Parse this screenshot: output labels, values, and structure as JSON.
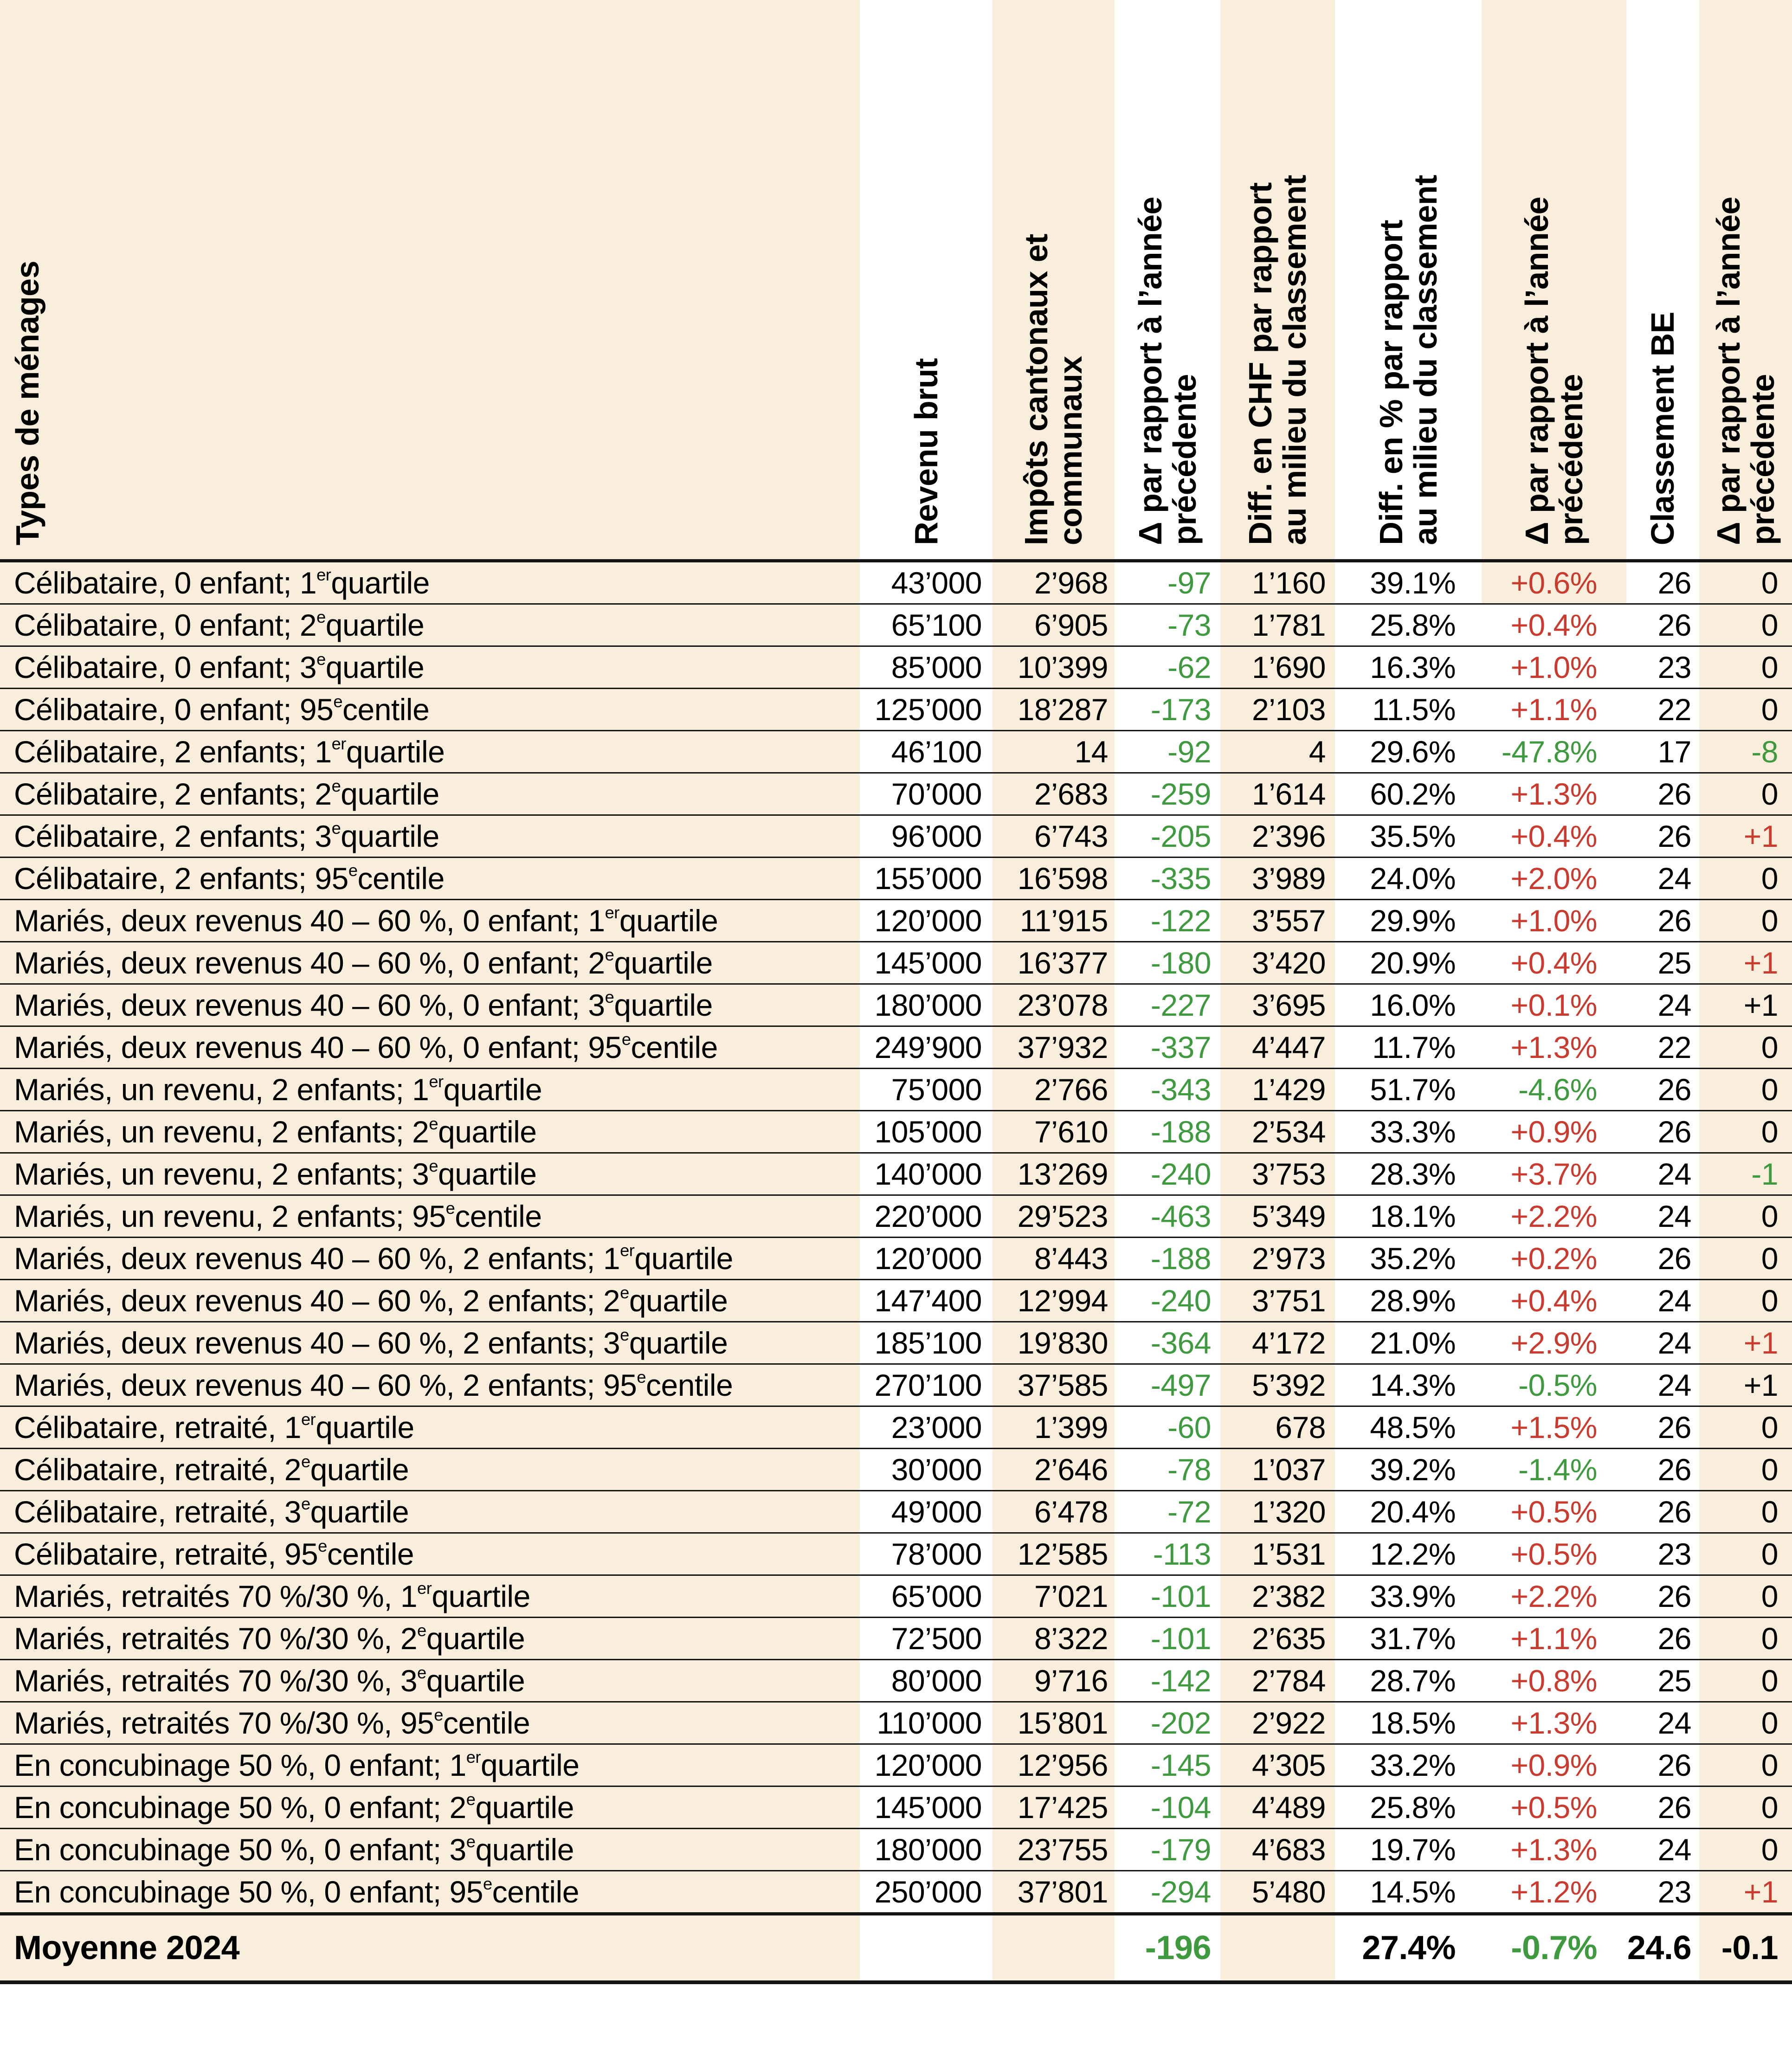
{
  "colors": {
    "background": "#ffffff",
    "beige": "#f8eedb",
    "green": "#3f9a3f",
    "red": "#c93a2f",
    "line": "#141414",
    "text": "#000000"
  },
  "chart_data": {
    "type": "table",
    "layout": {
      "striped_columns": [
        "impots",
        "diff_chf",
        "d_rang"
      ],
      "header_rotated": true,
      "grid": "horizontal-rules-only"
    },
    "columns": [
      {
        "id": "menage",
        "label": "Types de ménages"
      },
      {
        "id": "revenu",
        "label": "Revenu brut"
      },
      {
        "id": "impots",
        "label": "Impôts cantonaux et\ncommunaux"
      },
      {
        "id": "d_impots",
        "label": "Δ par rapport à l’année\nprécédente"
      },
      {
        "id": "diff_chf",
        "label": "Diff. en CHF par rapport\nau milieu du classement"
      },
      {
        "id": "diff_pct",
        "label": "Diff. en % par rapport\nau milieu du classement"
      },
      {
        "id": "d_pct",
        "label": "Δ par rapport à l’année\nprécédente"
      },
      {
        "id": "rang",
        "label": "Classement BE"
      },
      {
        "id": "d_rang",
        "label": "Δ par rapport à l’année\nprécédente"
      }
    ],
    "rows": [
      {
        "menage": "Célibataire, 0 enfant; 1^{er} quartile",
        "revenu": "43’000",
        "impots": "2’968",
        "d_impots": "-97",
        "diff_chf": "1’160",
        "diff_pct": "39.1%",
        "d_pct": "+0.6%",
        "d_pct_color": "red",
        "rang": "26",
        "d_rang": "0",
        "d_rang_color": "black"
      },
      {
        "menage": "Célibataire, 0 enfant; 2^{e} quartile",
        "revenu": "65’100",
        "impots": "6’905",
        "d_impots": "-73",
        "diff_chf": "1’781",
        "diff_pct": "25.8%",
        "d_pct": "+0.4%",
        "d_pct_color": "red",
        "rang": "26",
        "d_rang": "0",
        "d_rang_color": "black"
      },
      {
        "menage": "Célibataire, 0 enfant; 3^{e} quartile",
        "revenu": "85’000",
        "impots": "10’399",
        "d_impots": "-62",
        "diff_chf": "1’690",
        "diff_pct": "16.3%",
        "d_pct": "+1.0%",
        "d_pct_color": "red",
        "rang": "23",
        "d_rang": "0",
        "d_rang_color": "black"
      },
      {
        "menage": "Célibataire, 0 enfant; 95^{e} centile",
        "revenu": "125’000",
        "impots": "18’287",
        "d_impots": "-173",
        "diff_chf": "2’103",
        "diff_pct": "11.5%",
        "d_pct": "+1.1%",
        "d_pct_color": "red",
        "rang": "22",
        "d_rang": "0",
        "d_rang_color": "black"
      },
      {
        "menage": "Célibataire, 2 enfants; 1^{er} quartile",
        "revenu": "46’100",
        "impots": "14",
        "d_impots": "-92",
        "diff_chf": "4",
        "diff_pct": "29.6%",
        "d_pct": "-47.8%",
        "d_pct_color": "green",
        "rang": "17",
        "d_rang": "-8",
        "d_rang_color": "green"
      },
      {
        "menage": "Célibataire, 2 enfants; 2^{e} quartile",
        "revenu": "70’000",
        "impots": "2’683",
        "d_impots": "-259",
        "diff_chf": "1’614",
        "diff_pct": "60.2%",
        "d_pct": "+1.3%",
        "d_pct_color": "red",
        "rang": "26",
        "d_rang": "0",
        "d_rang_color": "black"
      },
      {
        "menage": "Célibataire, 2 enfants; 3^{e} quartile",
        "revenu": "96’000",
        "impots": "6’743",
        "d_impots": "-205",
        "diff_chf": "2’396",
        "diff_pct": "35.5%",
        "d_pct": "+0.4%",
        "d_pct_color": "red",
        "rang": "26",
        "d_rang": "+1",
        "d_rang_color": "red"
      },
      {
        "menage": "Célibataire, 2 enfants; 95^{e} centile",
        "revenu": "155’000",
        "impots": "16’598",
        "d_impots": "-335",
        "diff_chf": "3’989",
        "diff_pct": "24.0%",
        "d_pct": "+2.0%",
        "d_pct_color": "red",
        "rang": "24",
        "d_rang": "0",
        "d_rang_color": "black"
      },
      {
        "menage": "Mariés, deux revenus 40 – 60 %, 0 enfant; 1^{er} quartile",
        "revenu": "120’000",
        "impots": "11’915",
        "d_impots": "-122",
        "diff_chf": "3’557",
        "diff_pct": "29.9%",
        "d_pct": "+1.0%",
        "d_pct_color": "red",
        "rang": "26",
        "d_rang": "0",
        "d_rang_color": "black"
      },
      {
        "menage": "Mariés, deux revenus 40 – 60 %, 0 enfant; 2^{e} quartile",
        "revenu": "145’000",
        "impots": "16’377",
        "d_impots": "-180",
        "diff_chf": "3’420",
        "diff_pct": "20.9%",
        "d_pct": "+0.4%",
        "d_pct_color": "red",
        "rang": "25",
        "d_rang": "+1",
        "d_rang_color": "red"
      },
      {
        "menage": "Mariés, deux revenus 40 – 60 %, 0 enfant; 3^{e} quartile",
        "revenu": "180’000",
        "impots": "23’078",
        "d_impots": "-227",
        "diff_chf": "3’695",
        "diff_pct": "16.0%",
        "d_pct": "+0.1%",
        "d_pct_color": "red",
        "rang": "24",
        "d_rang": "+1",
        "d_rang_color": "black"
      },
      {
        "menage": "Mariés, deux revenus 40 – 60 %, 0 enfant; 95^{e} centile",
        "revenu": "249’900",
        "impots": "37’932",
        "d_impots": "-337",
        "diff_chf": "4’447",
        "diff_pct": "11.7%",
        "d_pct": "+1.3%",
        "d_pct_color": "red",
        "rang": "22",
        "d_rang": "0",
        "d_rang_color": "black"
      },
      {
        "menage": "Mariés, un revenu, 2 enfants; 1^{er} quartile",
        "revenu": "75’000",
        "impots": "2’766",
        "d_impots": "-343",
        "diff_chf": "1’429",
        "diff_pct": "51.7%",
        "d_pct": "-4.6%",
        "d_pct_color": "green",
        "rang": "26",
        "d_rang": "0",
        "d_rang_color": "black"
      },
      {
        "menage": "Mariés, un revenu, 2 enfants; 2^{e} quartile",
        "revenu": "105’000",
        "impots": "7’610",
        "d_impots": "-188",
        "diff_chf": "2’534",
        "diff_pct": "33.3%",
        "d_pct": "+0.9%",
        "d_pct_color": "red",
        "rang": "26",
        "d_rang": "0",
        "d_rang_color": "black"
      },
      {
        "menage": "Mariés, un revenu, 2 enfants; 3^{e} quartile",
        "revenu": "140’000",
        "impots": "13’269",
        "d_impots": "-240",
        "diff_chf": "3’753",
        "diff_pct": "28.3%",
        "d_pct": "+3.7%",
        "d_pct_color": "red",
        "rang": "24",
        "d_rang": "-1",
        "d_rang_color": "green"
      },
      {
        "menage": "Mariés, un revenu, 2 enfants; 95^{e} centile",
        "revenu": "220’000",
        "impots": "29’523",
        "d_impots": "-463",
        "diff_chf": "5’349",
        "diff_pct": "18.1%",
        "d_pct": "+2.2%",
        "d_pct_color": "red",
        "rang": "24",
        "d_rang": "0",
        "d_rang_color": "black"
      },
      {
        "menage": "Mariés, deux revenus 40 – 60 %, 2 enfants; 1^{er} quartile",
        "revenu": "120’000",
        "impots": "8’443",
        "d_impots": "-188",
        "diff_chf": "2’973",
        "diff_pct": "35.2%",
        "d_pct": "+0.2%",
        "d_pct_color": "red",
        "rang": "26",
        "d_rang": "0",
        "d_rang_color": "black"
      },
      {
        "menage": "Mariés, deux revenus 40 – 60 %, 2 enfants; 2^{e} quartile",
        "revenu": "147’400",
        "impots": "12’994",
        "d_impots": "-240",
        "diff_chf": "3’751",
        "diff_pct": "28.9%",
        "d_pct": "+0.4%",
        "d_pct_color": "red",
        "rang": "24",
        "d_rang": "0",
        "d_rang_color": "black"
      },
      {
        "menage": "Mariés, deux revenus 40 – 60 %, 2 enfants; 3^{e} quartile",
        "revenu": "185’100",
        "impots": "19’830",
        "d_impots": "-364",
        "diff_chf": "4’172",
        "diff_pct": "21.0%",
        "d_pct": "+2.9%",
        "d_pct_color": "red",
        "rang": "24",
        "d_rang": "+1",
        "d_rang_color": "red"
      },
      {
        "menage": "Mariés, deux revenus 40 – 60 %, 2 enfants; 95^{e} centile",
        "revenu": "270’100",
        "impots": "37’585",
        "d_impots": "-497",
        "diff_chf": "5’392",
        "diff_pct": "14.3%",
        "d_pct": "-0.5%",
        "d_pct_color": "green",
        "rang": "24",
        "d_rang": "+1",
        "d_rang_color": "black"
      },
      {
        "menage": "Célibataire, retraité, 1^{er} quartile",
        "revenu": "23’000",
        "impots": "1’399",
        "d_impots": "-60",
        "diff_chf": "678",
        "diff_pct": "48.5%",
        "d_pct": "+1.5%",
        "d_pct_color": "red",
        "rang": "26",
        "d_rang": "0",
        "d_rang_color": "black"
      },
      {
        "menage": "Célibataire, retraité, 2^{e} quartile",
        "revenu": "30’000",
        "impots": "2’646",
        "d_impots": "-78",
        "diff_chf": "1’037",
        "diff_pct": "39.2%",
        "d_pct": "-1.4%",
        "d_pct_color": "green",
        "rang": "26",
        "d_rang": "0",
        "d_rang_color": "black"
      },
      {
        "menage": "Célibataire, retraité, 3^{e} quartile",
        "revenu": "49’000",
        "impots": "6’478",
        "d_impots": "-72",
        "diff_chf": "1’320",
        "diff_pct": "20.4%",
        "d_pct": "+0.5%",
        "d_pct_color": "red",
        "rang": "26",
        "d_rang": "0",
        "d_rang_color": "black"
      },
      {
        "menage": "Célibataire, retraité, 95^{e} centile",
        "revenu": "78’000",
        "impots": "12’585",
        "d_impots": "-113",
        "diff_chf": "1’531",
        "diff_pct": "12.2%",
        "d_pct": "+0.5%",
        "d_pct_color": "red",
        "rang": "23",
        "d_rang": "0",
        "d_rang_color": "black"
      },
      {
        "menage": "Mariés, retraités 70 %/30 %, 1^{er} quartile",
        "revenu": "65’000",
        "impots": "7’021",
        "d_impots": "-101",
        "diff_chf": "2’382",
        "diff_pct": "33.9%",
        "d_pct": "+2.2%",
        "d_pct_color": "red",
        "rang": "26",
        "d_rang": "0",
        "d_rang_color": "black"
      },
      {
        "menage": "Mariés, retraités 70 %/30 %, 2^{e} quartile",
        "revenu": "72’500",
        "impots": "8’322",
        "d_impots": "-101",
        "diff_chf": "2’635",
        "diff_pct": "31.7%",
        "d_pct": "+1.1%",
        "d_pct_color": "red",
        "rang": "26",
        "d_rang": "0",
        "d_rang_color": "black"
      },
      {
        "menage": "Mariés, retraités 70 %/30 %, 3^{e} quartile",
        "revenu": "80’000",
        "impots": "9’716",
        "d_impots": "-142",
        "diff_chf": "2’784",
        "diff_pct": "28.7%",
        "d_pct": "+0.8%",
        "d_pct_color": "red",
        "rang": "25",
        "d_rang": "0",
        "d_rang_color": "black"
      },
      {
        "menage": "Mariés, retraités 70 %/30 %, 95^{e} centile",
        "revenu": "110’000",
        "impots": "15’801",
        "d_impots": "-202",
        "diff_chf": "2’922",
        "diff_pct": "18.5%",
        "d_pct": "+1.3%",
        "d_pct_color": "red",
        "rang": "24",
        "d_rang": "0",
        "d_rang_color": "black"
      },
      {
        "menage": "En concubinage 50 %, 0 enfant; 1^{er} quartile",
        "revenu": "120’000",
        "impots": "12’956",
        "d_impots": "-145",
        "diff_chf": "4’305",
        "diff_pct": "33.2%",
        "d_pct": "+0.9%",
        "d_pct_color": "red",
        "rang": "26",
        "d_rang": "0",
        "d_rang_color": "black"
      },
      {
        "menage": "En concubinage 50 %, 0 enfant; 2^{e} quartile",
        "revenu": "145’000",
        "impots": "17’425",
        "d_impots": "-104",
        "diff_chf": "4’489",
        "diff_pct": "25.8%",
        "d_pct": "+0.5%",
        "d_pct_color": "red",
        "rang": "26",
        "d_rang": "0",
        "d_rang_color": "black"
      },
      {
        "menage": "En concubinage 50 %, 0 enfant; 3^{e} quartile",
        "revenu": "180’000",
        "impots": "23’755",
        "d_impots": "-179",
        "diff_chf": "4’683",
        "diff_pct": "19.7%",
        "d_pct": "+1.3%",
        "d_pct_color": "red",
        "rang": "24",
        "d_rang": "0",
        "d_rang_color": "black"
      },
      {
        "menage": "En concubinage 50 %, 0 enfant; 95^{e} centile",
        "revenu": "250’000",
        "impots": "37’801",
        "d_impots": "-294",
        "diff_chf": "5’480",
        "diff_pct": "14.5%",
        "d_pct": "+1.2%",
        "d_pct_color": "red",
        "rang": "23",
        "d_rang": "+1",
        "d_rang_color": "red"
      }
    ],
    "summary_row": {
      "menage": "Moyenne 2024",
      "revenu": "",
      "impots": "",
      "d_impots": "-196",
      "diff_chf": "",
      "diff_pct": "27.4%",
      "d_pct": "-0.7%",
      "d_pct_color": "green",
      "rang": "24.6",
      "d_rang": "-0.1",
      "d_rang_color": "black"
    }
  }
}
